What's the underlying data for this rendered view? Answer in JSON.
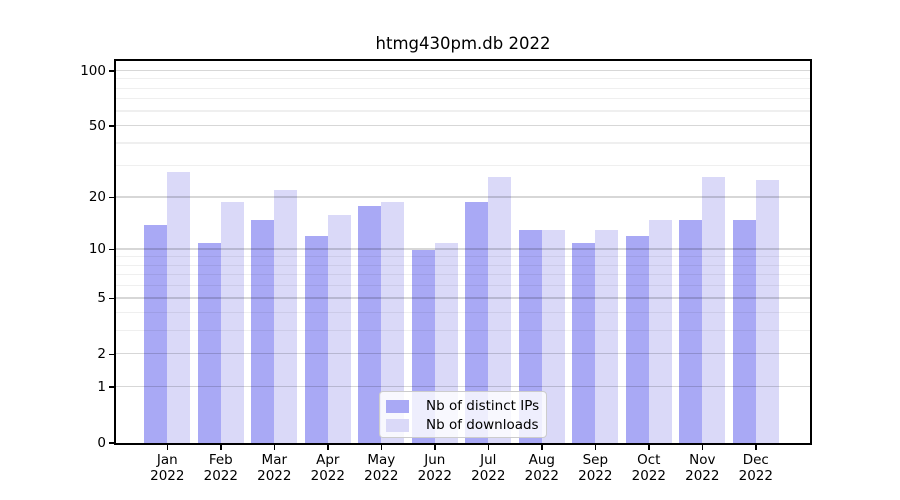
{
  "title": "htmg430pm.db 2022",
  "chart_data": {
    "type": "bar",
    "categories": [
      "Jan",
      "Feb",
      "Mar",
      "Apr",
      "May",
      "Jun",
      "Jul",
      "Aug",
      "Sep",
      "Oct",
      "Nov",
      "Dec"
    ],
    "year_label": "2022",
    "series": [
      {
        "name": "Nb of distinct IPs",
        "color": "#a9a9f5",
        "values": [
          14,
          11,
          15,
          12,
          18,
          10,
          19,
          13,
          11,
          12,
          15,
          15
        ]
      },
      {
        "name": "Nb of downloads",
        "color": "#dad9f8",
        "values": [
          28,
          19,
          22,
          16,
          19,
          11,
          26,
          13,
          13,
          15,
          26,
          25
        ]
      }
    ],
    "yticks": [
      0,
      1,
      2,
      5,
      10,
      20,
      50,
      100
    ],
    "minor_yticks": [
      3,
      4,
      6,
      7,
      8,
      9,
      30,
      40,
      60,
      70,
      80,
      90
    ],
    "yscale": "log(value+1)",
    "ylim": [
      0,
      115
    ],
    "grid": "horizontal, drawn over bars",
    "legend_position": "lower center"
  }
}
